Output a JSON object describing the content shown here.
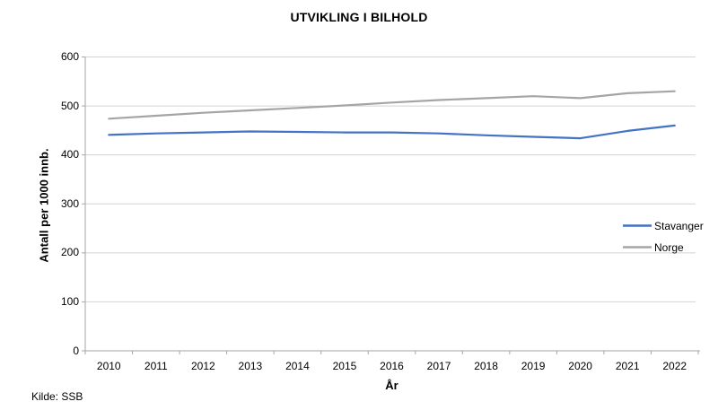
{
  "chart_data": {
    "type": "line",
    "title": "UTVIKLING I BILHOLD",
    "xlabel": "År",
    "ylabel": "Antall per 1000 innb.",
    "x": [
      "2010",
      "2011",
      "2012",
      "2013",
      "2014",
      "2015",
      "2016",
      "2017",
      "2018",
      "2019",
      "2020",
      "2021",
      "2022"
    ],
    "series": [
      {
        "name": "Stavanger",
        "color": "#4472C4",
        "values": [
          441,
          444,
          446,
          448,
          447,
          446,
          446,
          444,
          440,
          437,
          434,
          449,
          460
        ]
      },
      {
        "name": "Norge",
        "color": "#A5A5A5",
        "values": [
          474,
          480,
          486,
          491,
          496,
          501,
          507,
          512,
          516,
          520,
          516,
          526,
          530
        ]
      }
    ],
    "ylim": [
      0,
      600
    ],
    "ytick_step": 100,
    "grid": true,
    "legend_position": "right-middle"
  },
  "source": "Kilde: SSB",
  "colors": {
    "gridline": "#D2D2D2",
    "axis": "#A6A6A6",
    "text": "#000000",
    "background": "#FFFFFF"
  }
}
